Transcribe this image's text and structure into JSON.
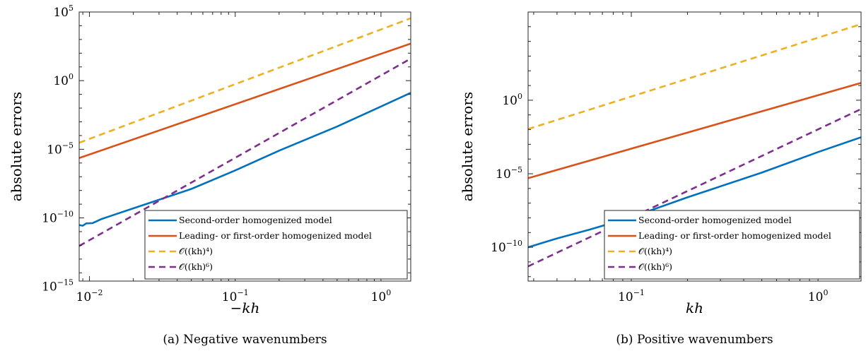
{
  "colors": {
    "blue": "#0072BD",
    "orange": "#D95319",
    "yellow": "#EDB120",
    "purple": "#7E2F8E"
  },
  "chart_data": [
    {
      "type": "line",
      "panel": "a",
      "caption": "(a) Negative wavenumbers",
      "xlabel": "−kh",
      "ylabel": "absolute errors",
      "xscale": "log",
      "yscale": "log",
      "xlim": [
        0.0085,
        1.6
      ],
      "ylim": [
        2.5e-15,
        100000.0
      ],
      "xticks": [
        {
          "value": 0.01,
          "base": "10",
          "exp": "−2"
        },
        {
          "value": 0.1,
          "base": "10",
          "exp": "−1"
        },
        {
          "value": 1,
          "base": "10",
          "exp": "0"
        }
      ],
      "yticks": [
        {
          "value": 1e-15,
          "base": "10",
          "exp": "−15"
        },
        {
          "value": 1e-10,
          "base": "10",
          "exp": "−10"
        },
        {
          "value": 1e-05,
          "base": "10",
          "exp": "−5"
        },
        {
          "value": 1,
          "base": "10",
          "exp": "0"
        },
        {
          "value": 100000.0,
          "base": "10",
          "exp": "5"
        }
      ],
      "legend_position": "bottom-right",
      "series": [
        {
          "name": "Second-order homogenized model",
          "color": "#0072BD",
          "dash": "solid",
          "x": [
            0.0085,
            0.009,
            0.0095,
            0.0105,
            0.012,
            0.014,
            0.02,
            0.05,
            0.1,
            0.2,
            0.5,
            1,
            1.6
          ],
          "y": [
            3e-11,
            2.7e-11,
            4e-11,
            4.2e-11,
            8e-11,
            1.4e-10,
            5e-10,
            1.3e-08,
            2.9e-07,
            8e-06,
            0.00045,
            0.013,
            0.13
          ]
        },
        {
          "name": "Leading- or first-order homogenized model",
          "color": "#D95319",
          "dash": "solid",
          "x": [
            0.0085,
            1.6
          ],
          "y": [
            2.3e-06,
            500
          ]
        },
        {
          "name": "𝒪((kh)⁴)",
          "color": "#EDB120",
          "dash": "dashed",
          "x": [
            0.0085,
            1.6
          ],
          "y": [
            3e-05,
            35000
          ]
        },
        {
          "name": "𝒪((kh)⁶)",
          "color": "#7E2F8E",
          "dash": "dashed",
          "x": [
            0.0085,
            1.6
          ],
          "y": [
            9e-13,
            40
          ]
        }
      ],
      "legend": [
        {
          "label": "Second-order homogenized model"
        },
        {
          "label": "Leading- or first-order homogenized model"
        },
        {
          "label": "𝒪((kh)⁴)"
        },
        {
          "label": "𝒪((kh)⁶)"
        }
      ]
    },
    {
      "type": "line",
      "panel": "b",
      "caption": "(b) Positive wavenumbers",
      "xlabel": "kh",
      "ylabel": "absolute errors",
      "xscale": "log",
      "yscale": "log",
      "xlim": [
        0.028,
        1.7
      ],
      "ylim": [
        5e-13,
        1000000.0
      ],
      "xticks": [
        {
          "value": 0.1,
          "base": "10",
          "exp": "−1"
        },
        {
          "value": 1,
          "base": "10",
          "exp": "0"
        }
      ],
      "yticks": [
        {
          "value": 1e-10,
          "base": "10",
          "exp": "−10"
        },
        {
          "value": 1e-05,
          "base": "10",
          "exp": "−5"
        },
        {
          "value": 1,
          "base": "10",
          "exp": "0"
        }
      ],
      "legend_position": "bottom-right",
      "series": [
        {
          "name": "Second-order homogenized model",
          "color": "#0072BD",
          "dash": "solid",
          "x": [
            0.028,
            0.04,
            0.06,
            0.1,
            0.2,
            0.5,
            1,
            1.7
          ],
          "y": [
            1e-10,
            4e-10,
            1.6e-09,
            1.1e-08,
            2.5e-07,
            1.2e-05,
            0.0003,
            0.003
          ]
        },
        {
          "name": "Leading- or first-order homogenized model",
          "color": "#D95319",
          "dash": "solid",
          "x": [
            0.028,
            1.7
          ],
          "y": [
            5e-06,
            15
          ]
        },
        {
          "name": "𝒪((kh)⁴)",
          "color": "#EDB120",
          "dash": "dashed",
          "x": [
            0.028,
            1.7
          ],
          "y": [
            0.011,
            150000
          ]
        },
        {
          "name": "𝒪((kh)⁶)",
          "color": "#7E2F8E",
          "dash": "dashed",
          "x": [
            0.028,
            1.7
          ],
          "y": [
            5e-12,
            0.25
          ]
        }
      ],
      "legend": [
        {
          "label": "Second-order homogenized model"
        },
        {
          "label": "Leading- or first-order homogenized model"
        },
        {
          "label": "𝒪((kh)⁴)"
        },
        {
          "label": "𝒪((kh)⁶)"
        }
      ]
    }
  ]
}
